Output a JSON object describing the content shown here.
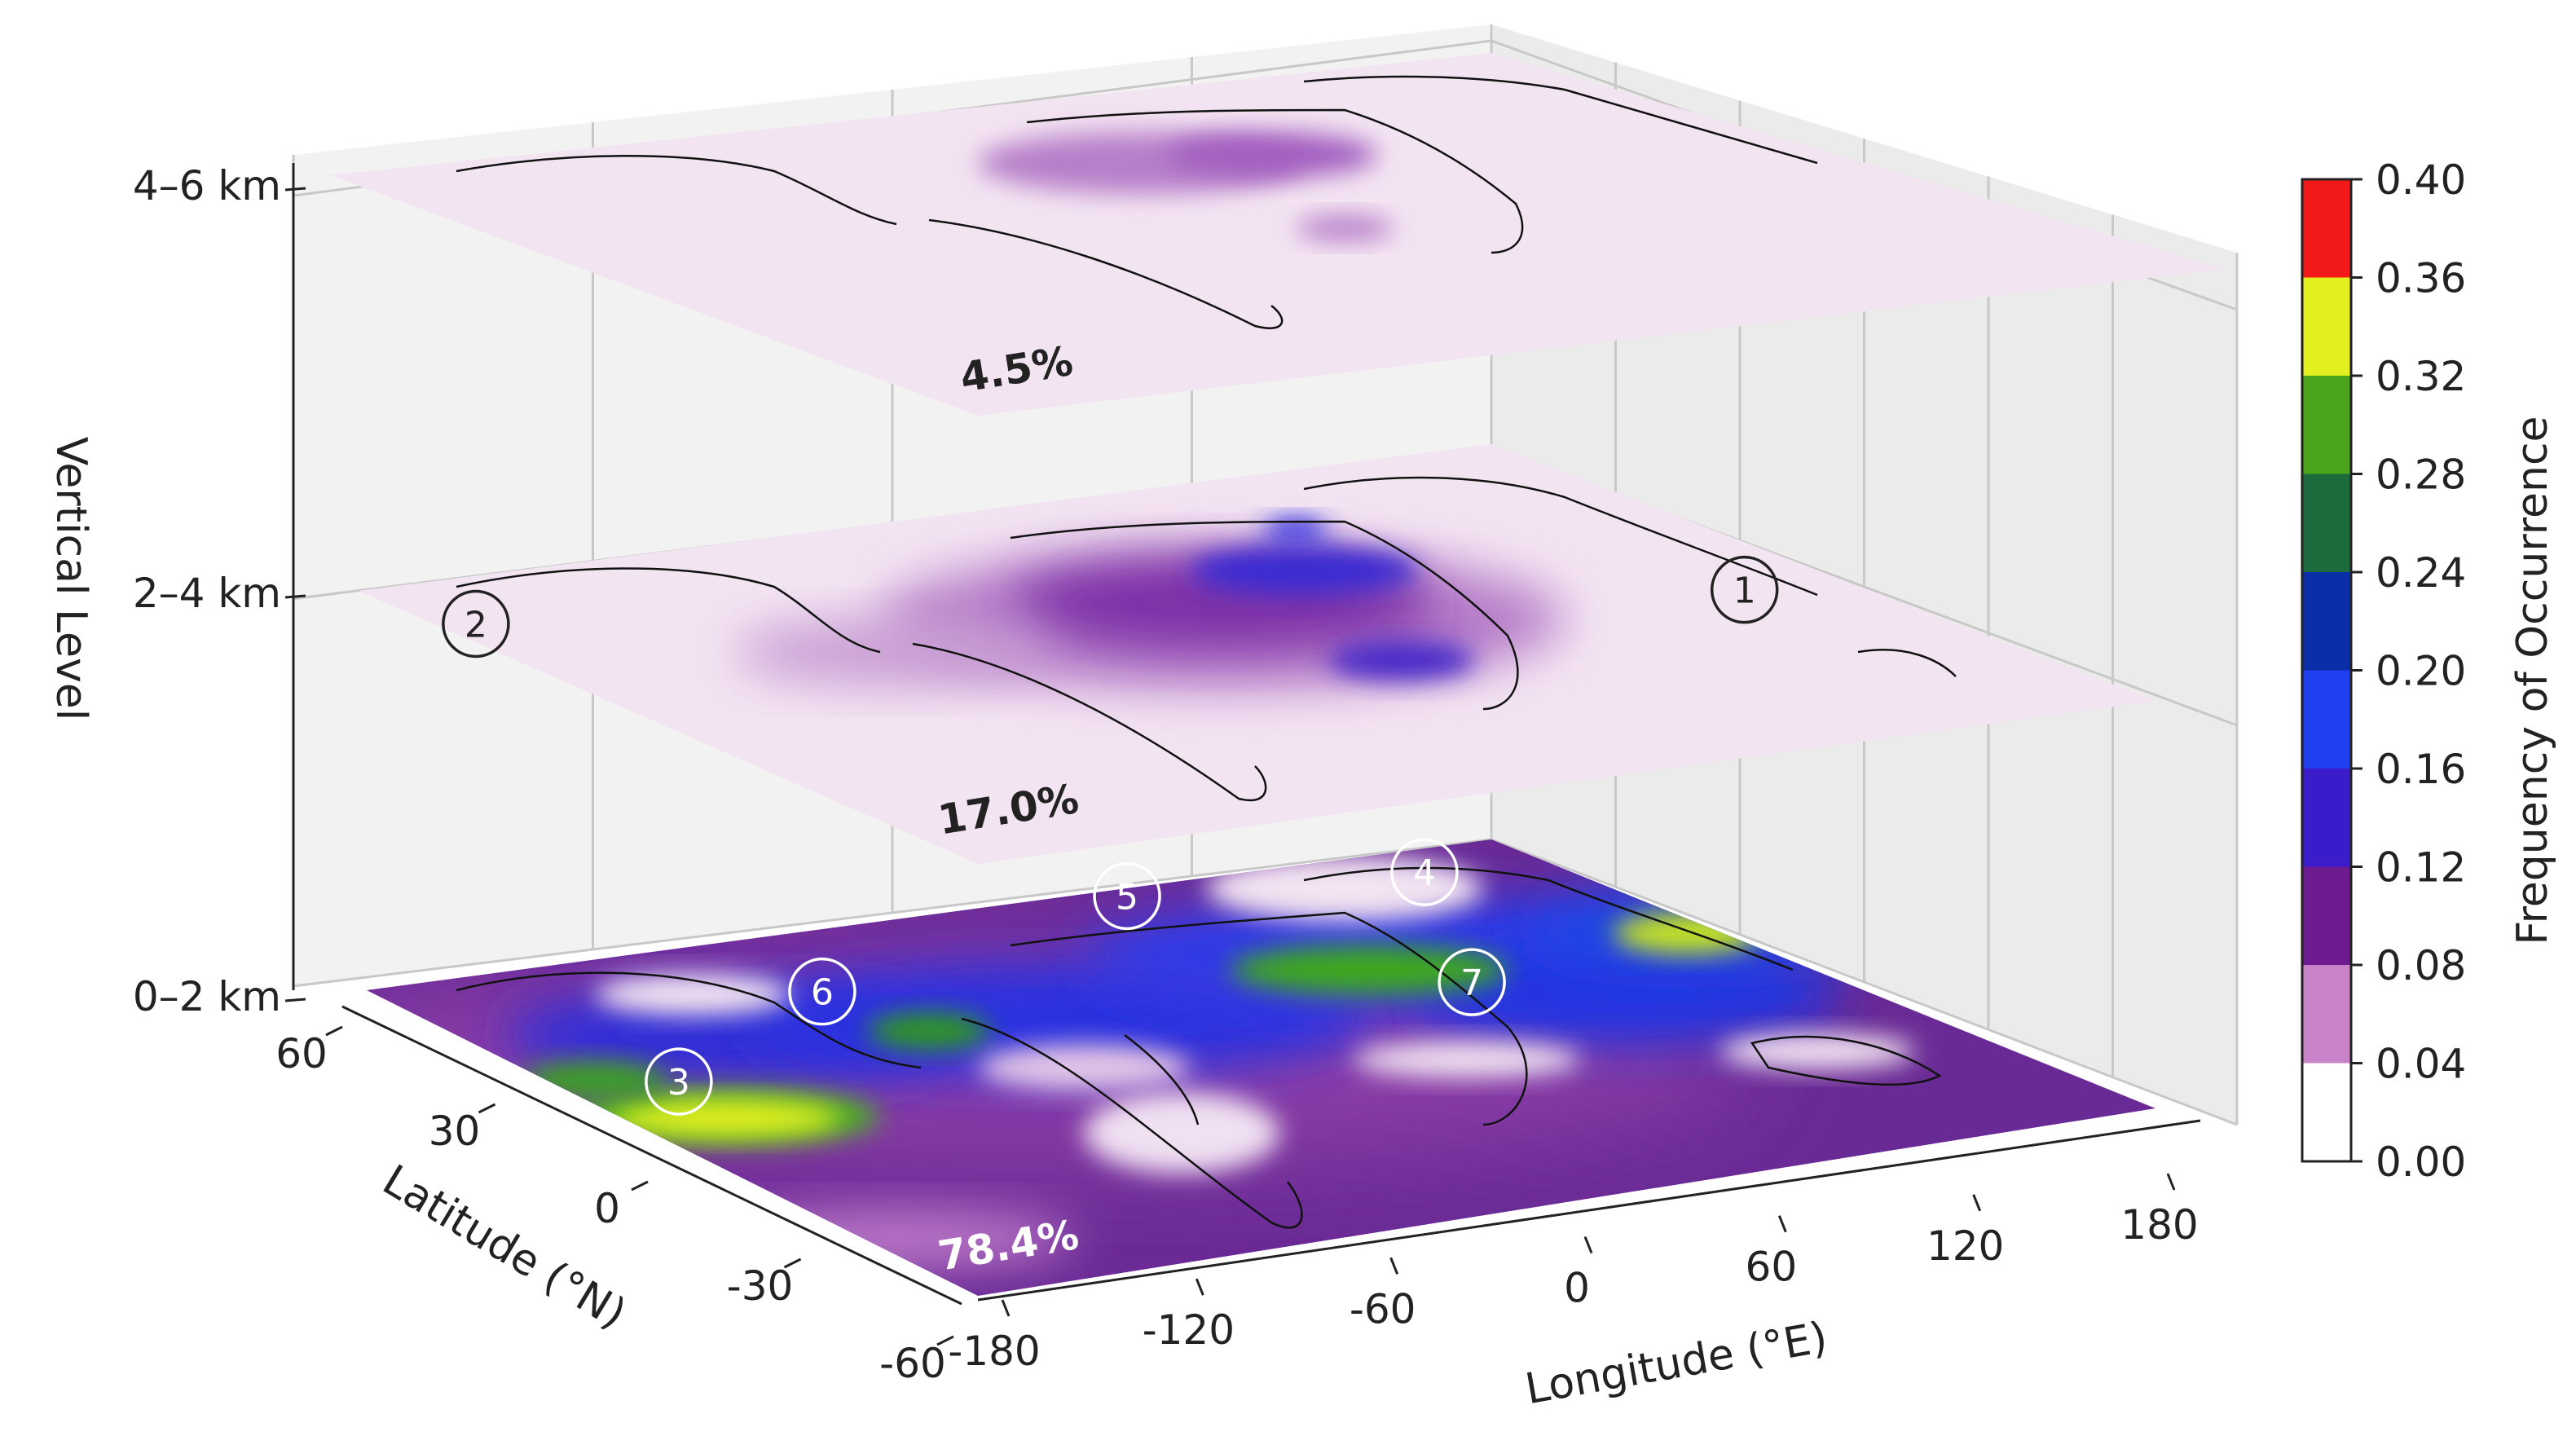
{
  "chart_data": {
    "type": "heatmap",
    "title": "",
    "xlabel": "Longitude (°E)",
    "ylabel": "Latitude (°N)",
    "zlabel": "Vertical Level",
    "x_ticks": [
      "-180",
      "-120",
      "-60",
      "0",
      "60",
      "120",
      "180"
    ],
    "y_ticks": [
      "-60",
      "-30",
      "0",
      "30",
      "60"
    ],
    "z_ticks": [
      "0–2 km",
      "2–4 km",
      "4–6 km"
    ],
    "xlim": [
      -180,
      180
    ],
    "ylim": [
      -60,
      60
    ],
    "grid": true,
    "layers": [
      {
        "level": "0–2 km",
        "percent": "78.4%",
        "markers": [
          {
            "label": "3",
            "lon": -150,
            "lat": 18
          },
          {
            "label": "4",
            "lon": 120,
            "lat": 45
          },
          {
            "label": "5",
            "lon": 40,
            "lat": 52
          },
          {
            "label": "6",
            "lon": -75,
            "lat": 38
          },
          {
            "label": "7",
            "lon": 80,
            "lat": 10
          }
        ]
      },
      {
        "level": "2–4 km",
        "percent": "17.0%",
        "markers": [
          {
            "label": "1",
            "lon": 140,
            "lat": -5
          },
          {
            "label": "2",
            "lon": -170,
            "lat": 45
          }
        ]
      },
      {
        "level": "4–6 km",
        "percent": "4.5%",
        "markers": []
      }
    ],
    "colorbar": {
      "label": "Frequency of Occurrence",
      "ticks": [
        "0.00",
        "0.04",
        "0.08",
        "0.12",
        "0.16",
        "0.20",
        "0.24",
        "0.28",
        "0.32",
        "0.36",
        "0.40"
      ],
      "colors": [
        "#ffffff",
        "#c983c9",
        "#6e1b91",
        "#3b1ccb",
        "#1f3ff0",
        "#0a2ea8",
        "#1c6b3c",
        "#4aa51c",
        "#e2ef21",
        "#f28c1a",
        "#f51a1a"
      ]
    }
  }
}
